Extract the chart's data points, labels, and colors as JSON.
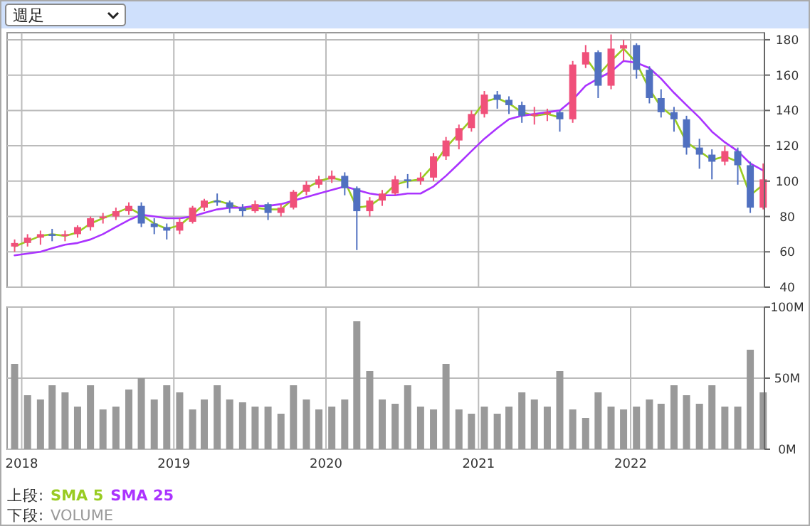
{
  "chart_data": [
    {
      "type": "candlestick",
      "title": "週足",
      "legend_title": "上段:",
      "legend": "bottom left",
      "grid": true,
      "tick_labels": "y",
      "x": [
        "2017-12-15",
        "2018-01-15",
        "2018-02-15",
        "2018-03-15",
        "2018-04-15",
        "2018-05-15",
        "2018-06-15",
        "2018-07-15",
        "2018-08-15",
        "2018-09-15",
        "2018-10-15",
        "2018-11-15",
        "2018-12-15",
        "2019-01-15",
        "2019-02-15",
        "2019-03-15",
        "2019-04-15",
        "2019-05-15",
        "2019-06-15",
        "2019-07-15",
        "2019-08-15",
        "2019-09-15",
        "2019-10-15",
        "2019-11-15",
        "2019-12-15",
        "2020-01-15",
        "2020-02-15",
        "2020-03-15",
        "2020-04-15",
        "2020-05-15",
        "2020-06-15",
        "2020-07-15",
        "2020-08-15",
        "2020-09-15",
        "2020-10-15",
        "2020-11-15",
        "2020-12-15",
        "2021-01-15",
        "2021-02-15",
        "2021-03-15",
        "2021-04-15",
        "2021-05-15",
        "2021-06-15",
        "2021-07-15",
        "2021-08-15",
        "2021-09-15",
        "2021-10-15",
        "2021-11-15",
        "2021-12-15",
        "2022-01-15",
        "2022-02-15",
        "2022-03-15",
        "2022-04-15",
        "2022-05-15",
        "2022-06-15",
        "2022-07-15",
        "2022-08-15",
        "2022-09-15",
        "2022-10-15",
        "2022-11-15"
      ],
      "ohlc": [
        [
          63,
          67,
          60,
          65
        ],
        [
          65,
          70,
          63,
          68
        ],
        [
          68,
          72,
          64,
          70
        ],
        [
          70,
          73,
          66,
          69
        ],
        [
          69,
          72,
          66,
          70
        ],
        [
          70,
          75,
          68,
          74
        ],
        [
          74,
          80,
          72,
          79
        ],
        [
          79,
          82,
          76,
          80
        ],
        [
          80,
          85,
          78,
          83
        ],
        [
          83,
          88,
          81,
          86
        ],
        [
          86,
          88,
          74,
          76
        ],
        [
          76,
          79,
          70,
          74
        ],
        [
          74,
          76,
          67,
          72
        ],
        [
          72,
          79,
          70,
          77
        ],
        [
          77,
          86,
          76,
          85
        ],
        [
          85,
          90,
          83,
          89
        ],
        [
          89,
          93,
          86,
          88
        ],
        [
          88,
          89,
          82,
          85
        ],
        [
          85,
          87,
          80,
          83
        ],
        [
          83,
          89,
          82,
          87
        ],
        [
          87,
          88,
          78,
          82
        ],
        [
          82,
          87,
          80,
          85
        ],
        [
          85,
          95,
          84,
          94
        ],
        [
          94,
          100,
          92,
          98
        ],
        [
          98,
          103,
          96,
          101
        ],
        [
          101,
          106,
          99,
          103
        ],
        [
          103,
          105,
          92,
          96
        ],
        [
          96,
          97,
          61,
          83
        ],
        [
          83,
          91,
          80,
          89
        ],
        [
          89,
          95,
          86,
          93
        ],
        [
          93,
          103,
          92,
          101
        ],
        [
          101,
          104,
          96,
          100
        ],
        [
          100,
          105,
          98,
          102
        ],
        [
          102,
          116,
          100,
          114
        ],
        [
          114,
          125,
          112,
          123
        ],
        [
          123,
          132,
          118,
          130
        ],
        [
          130,
          140,
          128,
          138
        ],
        [
          138,
          151,
          136,
          149
        ],
        [
          149,
          151,
          141,
          146
        ],
        [
          146,
          148,
          138,
          143
        ],
        [
          143,
          145,
          133,
          137
        ],
        [
          137,
          142,
          132,
          138
        ],
        [
          138,
          141,
          134,
          139
        ],
        [
          139,
          140,
          128,
          135
        ],
        [
          135,
          168,
          133,
          166
        ],
        [
          166,
          177,
          164,
          173
        ],
        [
          173,
          174,
          147,
          154
        ],
        [
          154,
          183,
          152,
          175
        ],
        [
          175,
          180,
          168,
          177
        ],
        [
          177,
          178,
          158,
          163
        ],
        [
          163,
          165,
          144,
          147
        ],
        [
          147,
          152,
          136,
          139
        ],
        [
          139,
          142,
          128,
          135
        ],
        [
          135,
          137,
          115,
          119
        ],
        [
          119,
          124,
          107,
          115
        ],
        [
          115,
          118,
          101,
          111
        ],
        [
          111,
          120,
          109,
          117
        ],
        [
          117,
          119,
          98,
          109
        ],
        [
          109,
          111,
          82,
          85
        ],
        [
          85,
          110,
          84,
          101
        ]
      ],
      "colors": [
        "#f0507a",
        "#f0507a",
        "#f0507a",
        "#5070c0",
        "#f0507a",
        "#f0507a",
        "#f0507a",
        "#f0507a",
        "#f0507a",
        "#f0507a",
        "#5070c0",
        "#5070c0",
        "#5070c0",
        "#f0507a",
        "#f0507a",
        "#f0507a",
        "#5070c0",
        "#5070c0",
        "#5070c0",
        "#f0507a",
        "#5070c0",
        "#f0507a",
        "#f0507a",
        "#f0507a",
        "#f0507a",
        "#f0507a",
        "#5070c0",
        "#5070c0",
        "#f0507a",
        "#f0507a",
        "#f0507a",
        "#5070c0",
        "#f0507a",
        "#f0507a",
        "#f0507a",
        "#f0507a",
        "#f0507a",
        "#f0507a",
        "#5070c0",
        "#5070c0",
        "#5070c0",
        "#f0507a",
        "#f0507a",
        "#5070c0",
        "#f0507a",
        "#f0507a",
        "#5070c0",
        "#f0507a",
        "#f0507a",
        "#5070c0",
        "#5070c0",
        "#5070c0",
        "#5070c0",
        "#5070c0",
        "#5070c0",
        "#5070c0",
        "#f0507a",
        "#5070c0",
        "#5070c0",
        "#f0507a"
      ],
      "series": [
        {
          "type": "line",
          "name": "SMA 5",
          "color": "#99cc22",
          "values": [
            63,
            66,
            69,
            70,
            69,
            71,
            76,
            79,
            82,
            85,
            81,
            76,
            73,
            75,
            81,
            87,
            89,
            87,
            84,
            85,
            84,
            84,
            90,
            96,
            100,
            102,
            100,
            85,
            86,
            91,
            98,
            100,
            101,
            109,
            119,
            127,
            135,
            145,
            147,
            144,
            139,
            137,
            138,
            136,
            null,
            170,
            160,
            168,
            175,
            167,
            152,
            142,
            136,
            122,
            117,
            112,
            114,
            111,
            92,
            98
          ]
        },
        {
          "type": "line",
          "name": "SMA 25",
          "color": "#aa33ff",
          "values": [
            58,
            59,
            60,
            62,
            64,
            65,
            67,
            70,
            74,
            78,
            81,
            80,
            79,
            79,
            80,
            82,
            84,
            85,
            85,
            86,
            86,
            87,
            89,
            91,
            93,
            95,
            97,
            95,
            93,
            92,
            92,
            93,
            93,
            97,
            103,
            110,
            117,
            124,
            130,
            135,
            137,
            138,
            139,
            140,
            146,
            154,
            158,
            162,
            168,
            167,
            164,
            158,
            150,
            143,
            136,
            128,
            122,
            117,
            110,
            106
          ]
        }
      ],
      "xlim": [
        "2017-11-27",
        "2022-11-18"
      ],
      "xticks": [
        "2018",
        "2019",
        "2020",
        "2021",
        "2022"
      ],
      "ylim": [
        40,
        184
      ],
      "yticks": [
        40,
        60,
        80,
        100,
        120,
        140,
        160,
        180
      ]
    },
    {
      "type": "bar",
      "legend_title": "下段:",
      "legend": "bottom left",
      "grid": true,
      "x": [
        "2017-12-15",
        "2018-01-15",
        "2018-02-15",
        "2018-03-15",
        "2018-04-15",
        "2018-05-15",
        "2018-06-15",
        "2018-07-15",
        "2018-08-15",
        "2018-09-15",
        "2018-10-15",
        "2018-11-15",
        "2018-12-15",
        "2019-01-15",
        "2019-02-15",
        "2019-03-15",
        "2019-04-15",
        "2019-05-15",
        "2019-06-15",
        "2019-07-15",
        "2019-08-15",
        "2019-09-15",
        "2019-10-15",
        "2019-11-15",
        "2019-12-15",
        "2020-01-15",
        "2020-02-15",
        "2020-03-15",
        "2020-04-15",
        "2020-05-15",
        "2020-06-15",
        "2020-07-15",
        "2020-08-15",
        "2020-09-15",
        "2020-10-15",
        "2020-11-15",
        "2020-12-15",
        "2021-01-15",
        "2021-02-15",
        "2021-03-15",
        "2021-04-15",
        "2021-05-15",
        "2021-06-15",
        "2021-07-15",
        "2021-08-15",
        "2021-09-15",
        "2021-10-15",
        "2021-11-15",
        "2021-12-15",
        "2022-01-15",
        "2022-02-15",
        "2022-03-15",
        "2022-04-15",
        "2022-05-15",
        "2022-06-15",
        "2022-07-15",
        "2022-08-15",
        "2022-09-15",
        "2022-10-15",
        "2022-11-15"
      ],
      "series": [
        {
          "name": "VOLUME",
          "color": "#999999",
          "values": [
            60,
            38,
            35,
            45,
            40,
            30,
            45,
            28,
            30,
            42,
            50,
            35,
            45,
            40,
            28,
            35,
            45,
            35,
            33,
            30,
            30,
            25,
            45,
            35,
            28,
            30,
            35,
            90,
            55,
            35,
            32,
            45,
            30,
            28,
            60,
            28,
            25,
            30,
            25,
            30,
            40,
            35,
            30,
            55,
            28,
            22,
            40,
            30,
            28,
            30,
            35,
            32,
            45,
            38,
            32,
            45,
            30,
            30,
            70,
            40
          ]
        }
      ],
      "xlim": [
        "2017-11-27",
        "2022-11-18"
      ],
      "xticks": [
        "2018",
        "2019",
        "2020",
        "2021",
        "2022"
      ],
      "ylim": [
        0,
        100
      ],
      "yticks": [
        {
          "value": 0,
          "label": "0M"
        },
        {
          "value": 50,
          "label": "50M"
        },
        {
          "value": 100,
          "label": "100M"
        }
      ]
    }
  ]
}
